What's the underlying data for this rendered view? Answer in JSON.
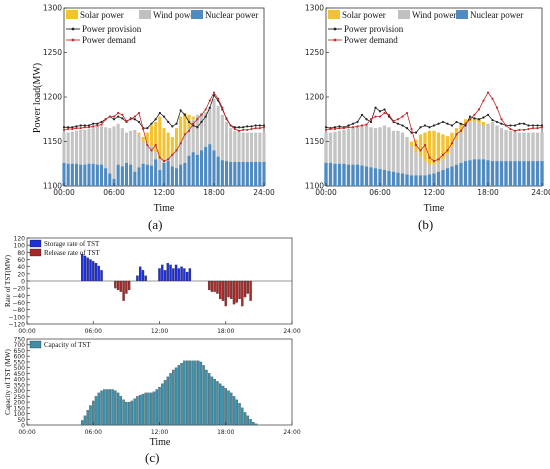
{
  "chart_data": [
    {
      "panel_label": "(a)",
      "type": "area",
      "xlabel": "Time",
      "ylabel": "Power load(MW)",
      "xlim": [
        0,
        24
      ],
      "ylim": [
        1100,
        1300
      ],
      "x_ticks": [
        0,
        6,
        12,
        18,
        24
      ],
      "x_tick_labels": [
        "00:00",
        "06:00",
        "12:00",
        "18:00",
        "24:00"
      ],
      "y_ticks": [
        1100,
        1150,
        1200,
        1250,
        1300
      ],
      "y_tick_labels": [
        "1100",
        "1150",
        "1200",
        "1250",
        "1300"
      ],
      "legend": [
        "Solar power",
        "Wind power",
        "Nuclear power",
        "Power provision",
        "Power demand"
      ],
      "x": [
        0,
        0.5,
        1,
        1.5,
        2,
        2.5,
        3,
        3.5,
        4,
        4.5,
        5,
        5.5,
        6,
        6.5,
        7,
        7.5,
        8,
        8.5,
        9,
        9.5,
        10,
        10.5,
        11,
        11.5,
        12,
        12.5,
        13,
        13.5,
        14,
        14.5,
        15,
        15.5,
        16,
        16.5,
        17,
        17.5,
        18,
        18.5,
        19,
        19.5,
        20,
        20.5,
        21,
        21.5,
        22,
        22.5,
        23,
        23.5,
        24
      ],
      "series": [
        {
          "name": "Nuclear power",
          "values": [
            1126,
            1125,
            1125,
            1125,
            1124,
            1124,
            1125,
            1125,
            1124,
            1124,
            1120,
            1114,
            1108,
            1124,
            1122,
            1126,
            1124,
            1116,
            1121,
            1125,
            1124,
            1123,
            1130,
            1118,
            1126,
            1128,
            1122,
            1120,
            1124,
            1126,
            1134,
            1138,
            1135,
            1140,
            1144,
            1147,
            1140,
            1133,
            1129,
            1128,
            1127,
            1127,
            1127,
            1127,
            1127,
            1127,
            1127,
            1127,
            1127
          ]
        },
        {
          "name": "Wind power",
          "values": [
            1160,
            1160,
            1161,
            1162,
            1163,
            1163,
            1164,
            1166,
            1167,
            1167,
            1166,
            1165,
            1167,
            1170,
            1165,
            1160,
            1162,
            1163,
            1158,
            1150,
            1148,
            1145,
            1138,
            1130,
            1130,
            1132,
            1135,
            1140,
            1150,
            1158,
            1165,
            1175,
            1180,
            1182,
            1183,
            1188,
            1198,
            1190,
            1180,
            1172,
            1165,
            1162,
            1161,
            1160,
            1160,
            1160,
            1160,
            1160,
            1160
          ]
        },
        {
          "name": "Solar power",
          "values": [
            1160,
            1160,
            1161,
            1162,
            1163,
            1163,
            1164,
            1166,
            1167,
            1167,
            1166,
            1165,
            1167,
            1170,
            1165,
            1160,
            1162,
            1163,
            1160,
            1155,
            1160,
            1168,
            1172,
            1178,
            1165,
            1160,
            1155,
            1165,
            1178,
            1182,
            1180,
            1178,
            1180,
            1182,
            1183,
            1188,
            1198,
            1190,
            1180,
            1172,
            1165,
            1162,
            1161,
            1160,
            1160,
            1160,
            1160,
            1160,
            1160
          ]
        },
        {
          "name": "Power provision",
          "values": [
            1166,
            1166,
            1166,
            1167,
            1168,
            1168,
            1168,
            1170,
            1170,
            1172,
            1175,
            1178,
            1175,
            1178,
            1176,
            1172,
            1176,
            1175,
            1172,
            1165,
            1165,
            1170,
            1175,
            1182,
            1178,
            1172,
            1167,
            1170,
            1185,
            1180,
            1172,
            1168,
            1166,
            1172,
            1178,
            1188,
            1202,
            1196,
            1186,
            1176,
            1168,
            1166,
            1166,
            1166,
            1167,
            1167,
            1168,
            1168,
            1168
          ]
        },
        {
          "name": "Power demand",
          "values": [
            1163,
            1164,
            1164,
            1165,
            1165,
            1166,
            1166,
            1167,
            1168,
            1169,
            1175,
            1178,
            1178,
            1182,
            1180,
            1173,
            1175,
            1178,
            1182,
            1164,
            1146,
            1140,
            1146,
            1132,
            1128,
            1130,
            1135,
            1140,
            1148,
            1158,
            1162,
            1170,
            1175,
            1180,
            1186,
            1196,
            1205,
            1198,
            1188,
            1175,
            1168,
            1164,
            1162,
            1163,
            1163,
            1164,
            1165,
            1165,
            1166
          ]
        }
      ]
    },
    {
      "panel_label": "(b)",
      "type": "area",
      "xlabel": "Time",
      "ylabel": "",
      "xlim": [
        0,
        24
      ],
      "ylim": [
        1100,
        1300
      ],
      "x_ticks": [
        0,
        6,
        12,
        18,
        24
      ],
      "x_tick_labels": [
        "00:00",
        "06:00",
        "12:00",
        "18:00",
        "24:00"
      ],
      "y_ticks": [
        1100,
        1150,
        1200,
        1250,
        1300
      ],
      "y_tick_labels": [
        "1100",
        "1150",
        "1200",
        "1250",
        "1300"
      ],
      "legend": [
        "Solar power",
        "Wind power",
        "Nuclear power",
        "Power provision",
        "Power demand"
      ],
      "x": [
        0,
        0.5,
        1,
        1.5,
        2,
        2.5,
        3,
        3.5,
        4,
        4.5,
        5,
        5.5,
        6,
        6.5,
        7,
        7.5,
        8,
        8.5,
        9,
        9.5,
        10,
        10.5,
        11,
        11.5,
        12,
        12.5,
        13,
        13.5,
        14,
        14.5,
        15,
        15.5,
        16,
        16.5,
        17,
        17.5,
        18,
        18.5,
        19,
        19.5,
        20,
        20.5,
        21,
        21.5,
        22,
        22.5,
        23,
        23.5,
        24
      ],
      "series": [
        {
          "name": "Nuclear power",
          "values": [
            1126,
            1126,
            1125,
            1125,
            1125,
            1124,
            1124,
            1124,
            1123,
            1122,
            1121,
            1120,
            1119,
            1118,
            1117,
            1116,
            1115,
            1114,
            1113,
            1112,
            1112,
            1112,
            1112,
            1113,
            1114,
            1116,
            1118,
            1120,
            1122,
            1124,
            1126,
            1128,
            1129,
            1130,
            1130,
            1130,
            1129,
            1128,
            1128,
            1128,
            1128,
            1128,
            1128,
            1128,
            1128,
            1128,
            1128,
            1128,
            1128
          ]
        },
        {
          "name": "Wind power",
          "values": [
            1160,
            1160,
            1161,
            1162,
            1163,
            1164,
            1165,
            1166,
            1167,
            1168,
            1166,
            1165,
            1166,
            1168,
            1166,
            1162,
            1162,
            1160,
            1155,
            1145,
            1138,
            1133,
            1128,
            1124,
            1124,
            1126,
            1130,
            1136,
            1144,
            1152,
            1160,
            1170,
            1172,
            1172,
            1170,
            1168,
            1170,
            1172,
            1168,
            1165,
            1163,
            1162,
            1161,
            1160,
            1160,
            1160,
            1160,
            1160,
            1160
          ]
        },
        {
          "name": "Solar power",
          "values": [
            1160,
            1160,
            1161,
            1162,
            1163,
            1164,
            1165,
            1166,
            1167,
            1168,
            1166,
            1165,
            1166,
            1168,
            1166,
            1162,
            1162,
            1160,
            1155,
            1150,
            1152,
            1158,
            1160,
            1162,
            1162,
            1160,
            1158,
            1156,
            1160,
            1165,
            1170,
            1175,
            1176,
            1176,
            1175,
            1172,
            1170,
            1172,
            1168,
            1165,
            1163,
            1162,
            1161,
            1160,
            1160,
            1160,
            1160,
            1160,
            1160
          ]
        },
        {
          "name": "Power provision",
          "values": [
            1166,
            1165,
            1166,
            1167,
            1166,
            1168,
            1170,
            1172,
            1180,
            1175,
            1172,
            1188,
            1184,
            1186,
            1178,
            1172,
            1170,
            1168,
            1165,
            1160,
            1160,
            1166,
            1168,
            1166,
            1168,
            1170,
            1172,
            1170,
            1168,
            1172,
            1170,
            1168,
            1178,
            1176,
            1175,
            1177,
            1180,
            1174,
            1172,
            1170,
            1168,
            1168,
            1168,
            1170,
            1170,
            1168,
            1168,
            1168,
            1168
          ]
        },
        {
          "name": "Power demand",
          "values": [
            1163,
            1164,
            1164,
            1165,
            1165,
            1166,
            1166,
            1167,
            1168,
            1169,
            1175,
            1178,
            1178,
            1182,
            1180,
            1173,
            1175,
            1178,
            1182,
            1164,
            1146,
            1140,
            1146,
            1132,
            1128,
            1130,
            1135,
            1140,
            1148,
            1158,
            1162,
            1170,
            1175,
            1180,
            1186,
            1196,
            1205,
            1198,
            1188,
            1175,
            1168,
            1164,
            1162,
            1163,
            1163,
            1164,
            1165,
            1165,
            1166
          ]
        }
      ]
    },
    {
      "panel_label": "(c)",
      "type": "bar",
      "xlabel": "",
      "ylabel": "Rate of TST(MW)",
      "xlim": [
        0,
        24
      ],
      "ylim": [
        -120,
        120
      ],
      "x_ticks": [
        0,
        6,
        12,
        18,
        24
      ],
      "x_tick_labels": [
        "00:00",
        "06:00",
        "12:00",
        "18:00",
        "24:00"
      ],
      "y_ticks": [
        -120,
        -100,
        -80,
        -60,
        -40,
        -20,
        0,
        20,
        40,
        60,
        80,
        100,
        120
      ],
      "y_tick_labels": [
        "−120",
        "−100",
        "−80",
        "−60",
        "−40",
        "−20",
        "0",
        "20",
        "40",
        "60",
        "80",
        "100",
        "120"
      ],
      "legend": [
        "Storage rate of TST",
        "Release rate of TST"
      ],
      "bar_width_hours": 0.25,
      "series": [
        {
          "name": "Storage rate of TST",
          "x": [
            5.0,
            5.25,
            5.5,
            5.75,
            6.0,
            6.25,
            6.5,
            6.75,
            10.0,
            10.25,
            10.5,
            10.75,
            12.0,
            12.25,
            12.5,
            12.75,
            13.0,
            13.25,
            13.5,
            13.75,
            14.0,
            14.25,
            14.5,
            14.75
          ],
          "values": [
            75,
            70,
            65,
            60,
            55,
            50,
            42,
            30,
            15,
            40,
            30,
            15,
            35,
            45,
            30,
            50,
            45,
            35,
            45,
            35,
            40,
            35,
            25,
            35
          ]
        },
        {
          "name": "Release rate of TST",
          "x": [
            8.0,
            8.25,
            8.5,
            8.75,
            9.0,
            9.25,
            16.5,
            16.75,
            17.0,
            17.25,
            17.5,
            17.75,
            18.0,
            18.25,
            18.5,
            18.75,
            19.0,
            19.25,
            19.5,
            19.75,
            20.0,
            20.25
          ],
          "values": [
            -20,
            -25,
            -30,
            -55,
            -35,
            -25,
            -25,
            -30,
            -30,
            -35,
            -50,
            -55,
            -70,
            -45,
            -50,
            -65,
            -60,
            -50,
            -70,
            -45,
            -35,
            -55
          ]
        }
      ]
    },
    {
      "type": "bar",
      "xlabel": "Time",
      "ylabel": "Capacity of TST (MW)",
      "xlim": [
        0,
        24
      ],
      "ylim": [
        0,
        750
      ],
      "x_ticks": [
        0,
        6,
        12,
        18,
        24
      ],
      "x_tick_labels": [
        "00:00",
        "06:00",
        "12:00",
        "18:00",
        "24:00"
      ],
      "y_ticks": [
        0,
        50,
        100,
        150,
        200,
        250,
        300,
        350,
        400,
        450,
        500,
        550,
        600,
        650,
        700,
        750
      ],
      "y_tick_labels": [
        "0",
        "50",
        "100",
        "150",
        "200",
        "250",
        "300",
        "350",
        "400",
        "450",
        "500",
        "550",
        "600",
        "650",
        "700",
        "750"
      ],
      "legend": [
        "Capacity of TST"
      ],
      "bar_width_hours": 0.25,
      "series": [
        {
          "name": "Capacity of TST",
          "x": [
            5.0,
            5.25,
            5.5,
            5.75,
            6.0,
            6.25,
            6.5,
            6.75,
            7.0,
            7.25,
            7.5,
            7.75,
            8.0,
            8.25,
            8.5,
            8.75,
            9.0,
            9.25,
            9.5,
            9.75,
            10.0,
            10.25,
            10.5,
            10.75,
            11.0,
            11.25,
            11.5,
            11.75,
            12.0,
            12.25,
            12.5,
            12.75,
            13.0,
            13.25,
            13.5,
            13.75,
            14.0,
            14.25,
            14.5,
            14.75,
            15.0,
            15.25,
            15.5,
            15.75,
            16.0,
            16.25,
            16.5,
            16.75,
            17.0,
            17.25,
            17.5,
            17.75,
            18.0,
            18.25,
            18.5,
            18.75,
            19.0,
            19.25,
            19.5,
            19.75,
            20.0,
            20.25,
            20.5,
            20.75
          ],
          "values": [
            40,
            80,
            130,
            170,
            210,
            250,
            280,
            300,
            310,
            310,
            310,
            310,
            300,
            280,
            250,
            220,
            200,
            200,
            210,
            230,
            250,
            260,
            270,
            280,
            280,
            280,
            290,
            310,
            330,
            360,
            390,
            420,
            450,
            480,
            500,
            520,
            540,
            560,
            560,
            560,
            560,
            560,
            560,
            550,
            520,
            480,
            450,
            420,
            400,
            380,
            360,
            340,
            320,
            300,
            280,
            250,
            220,
            190,
            150,
            110,
            80,
            50,
            25,
            10
          ]
        }
      ]
    }
  ]
}
